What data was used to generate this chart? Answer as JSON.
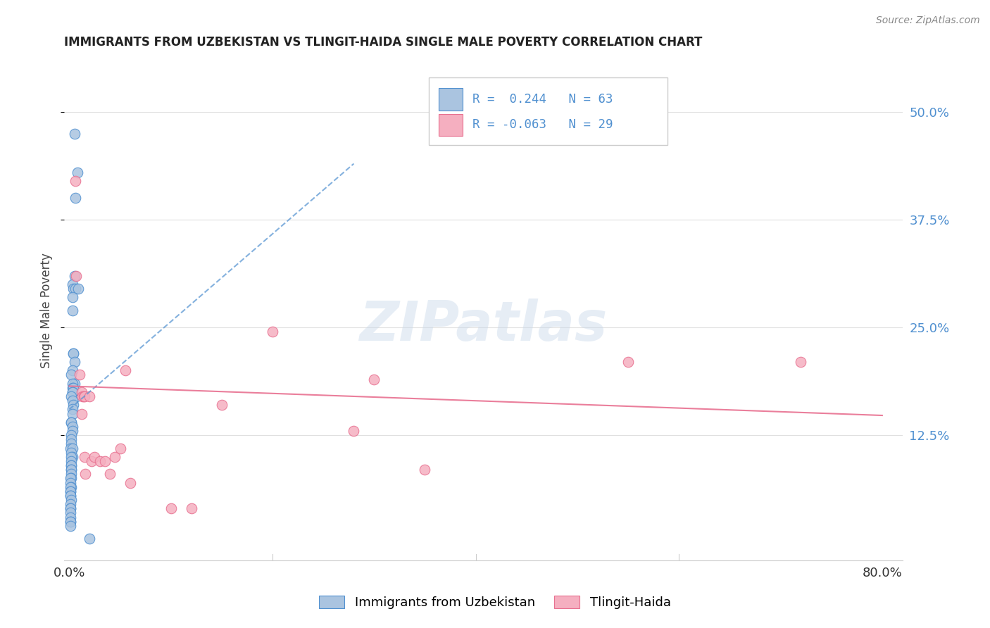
{
  "title": "IMMIGRANTS FROM UZBEKISTAN VS TLINGIT-HAIDA SINGLE MALE POVERTY CORRELATION CHART",
  "source": "Source: ZipAtlas.com",
  "ylabel": "Single Male Poverty",
  "ytick_labels": [
    "50.0%",
    "37.5%",
    "25.0%",
    "12.5%"
  ],
  "ytick_values": [
    0.5,
    0.375,
    0.25,
    0.125
  ],
  "xlim": [
    -0.005,
    0.82
  ],
  "ylim": [
    -0.02,
    0.56
  ],
  "legend_blue_label": "Immigrants from Uzbekistan",
  "legend_pink_label": "Tlingit-Haida",
  "legend_blue_r": " 0.244",
  "legend_blue_n": "63",
  "legend_pink_r": "-0.063",
  "legend_pink_n": "29",
  "blue_color": "#aac4e0",
  "pink_color": "#f5afc0",
  "trend_blue_color": "#5090d0",
  "trend_pink_color": "#e87090",
  "blue_scatter_x": [
    0.005,
    0.008,
    0.006,
    0.005,
    0.003,
    0.004,
    0.006,
    0.009,
    0.003,
    0.003,
    0.004,
    0.004,
    0.005,
    0.003,
    0.002,
    0.005,
    0.003,
    0.003,
    0.004,
    0.003,
    0.003,
    0.002,
    0.003,
    0.004,
    0.003,
    0.003,
    0.002,
    0.002,
    0.003,
    0.003,
    0.002,
    0.002,
    0.002,
    0.001,
    0.003,
    0.002,
    0.003,
    0.002,
    0.002,
    0.002,
    0.002,
    0.002,
    0.002,
    0.002,
    0.002,
    0.001,
    0.001,
    0.002,
    0.001,
    0.001,
    0.001,
    0.001,
    0.001,
    0.002,
    0.001,
    0.001,
    0.001,
    0.001,
    0.001,
    0.001,
    0.001,
    0.001,
    0.02
  ],
  "blue_scatter_y": [
    0.475,
    0.43,
    0.4,
    0.31,
    0.3,
    0.295,
    0.295,
    0.295,
    0.285,
    0.27,
    0.22,
    0.22,
    0.21,
    0.2,
    0.195,
    0.185,
    0.185,
    0.18,
    0.18,
    0.175,
    0.175,
    0.17,
    0.165,
    0.16,
    0.155,
    0.15,
    0.14,
    0.14,
    0.135,
    0.13,
    0.125,
    0.12,
    0.115,
    0.11,
    0.11,
    0.105,
    0.1,
    0.1,
    0.095,
    0.09,
    0.09,
    0.085,
    0.085,
    0.08,
    0.075,
    0.075,
    0.07,
    0.065,
    0.065,
    0.06,
    0.06,
    0.055,
    0.055,
    0.05,
    0.045,
    0.04,
    0.04,
    0.035,
    0.03,
    0.025,
    0.025,
    0.02,
    0.005
  ],
  "pink_scatter_x": [
    0.006,
    0.007,
    0.01,
    0.012,
    0.012,
    0.013,
    0.014,
    0.015,
    0.015,
    0.016,
    0.02,
    0.022,
    0.025,
    0.03,
    0.035,
    0.04,
    0.045,
    0.05,
    0.055,
    0.06,
    0.1,
    0.12,
    0.15,
    0.2,
    0.28,
    0.3,
    0.35,
    0.55,
    0.72
  ],
  "pink_scatter_y": [
    0.42,
    0.31,
    0.195,
    0.175,
    0.15,
    0.17,
    0.17,
    0.17,
    0.1,
    0.08,
    0.17,
    0.095,
    0.1,
    0.095,
    0.095,
    0.08,
    0.1,
    0.11,
    0.2,
    0.07,
    0.04,
    0.04,
    0.16,
    0.245,
    0.13,
    0.19,
    0.085,
    0.21,
    0.21
  ],
  "blue_trend_x": [
    0.0,
    0.28
  ],
  "blue_trend_y": [
    0.155,
    0.44
  ],
  "pink_trend_x": [
    0.0,
    0.8
  ],
  "pink_trend_y": [
    0.182,
    0.148
  ],
  "watermark_text": "ZIPatlas",
  "background_color": "#ffffff",
  "grid_color": "#e0e0e0"
}
